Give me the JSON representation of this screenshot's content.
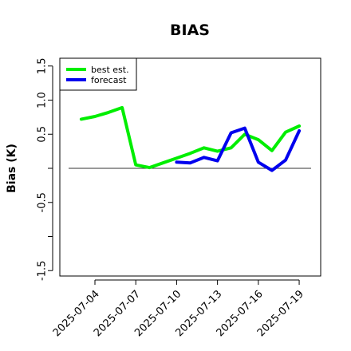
{
  "chart_data": {
    "type": "line",
    "title": "BIAS",
    "ylabel": "Bias (K)",
    "xlabel": "",
    "ylim": [
      -1.6,
      1.65
    ],
    "y_ticks": [
      -1.5,
      -1.0,
      -0.5,
      0.0,
      0.5,
      1.0,
      1.5
    ],
    "y_tick_labels": [
      "-1.5",
      "",
      "-0.5",
      "",
      "0.5",
      "1.0",
      "1.5"
    ],
    "x_ticks": [
      "2025-07-04",
      "2025-07-07",
      "2025-07-10",
      "2025-07-13",
      "2025-07-16",
      "2025-07-19"
    ],
    "highlight_tick": "2025-07-10",
    "highlight_color": "#2e8b2e",
    "reference_line": 0,
    "legend": {
      "position": "top-left",
      "entries": [
        "best est.",
        "forecast"
      ]
    },
    "series": [
      {
        "name": "best est.",
        "color": "#00ee00",
        "points": [
          {
            "x": "2025-07-03",
            "y": 0.72
          },
          {
            "x": "2025-07-04",
            "y": 0.76
          },
          {
            "x": "2025-07-05",
            "y": 0.82
          },
          {
            "x": "2025-07-06",
            "y": 0.89
          },
          {
            "x": "2025-07-07",
            "y": 0.05
          },
          {
            "x": "2025-07-08",
            "y": 0.01
          },
          {
            "x": "2025-07-09",
            "y": 0.08
          },
          {
            "x": "2025-07-10",
            "y": 0.15
          },
          {
            "x": "2025-07-11",
            "y": 0.22
          },
          {
            "x": "2025-07-12",
            "y": 0.3
          },
          {
            "x": "2025-07-13",
            "y": 0.25
          },
          {
            "x": "2025-07-14",
            "y": 0.3
          },
          {
            "x": "2025-07-15",
            "y": 0.5
          },
          {
            "x": "2025-07-16",
            "y": 0.42
          },
          {
            "x": "2025-07-17",
            "y": 0.26
          },
          {
            "x": "2025-07-18",
            "y": 0.53
          },
          {
            "x": "2025-07-19",
            "y": 0.62
          }
        ]
      },
      {
        "name": "forecast",
        "color": "#0000ee",
        "points": [
          {
            "x": "2025-07-10",
            "y": 0.09
          },
          {
            "x": "2025-07-11",
            "y": 0.08
          },
          {
            "x": "2025-07-12",
            "y": 0.16
          },
          {
            "x": "2025-07-13",
            "y": 0.11
          },
          {
            "x": "2025-07-14",
            "y": 0.52
          },
          {
            "x": "2025-07-15",
            "y": 0.59
          },
          {
            "x": "2025-07-16",
            "y": 0.09
          },
          {
            "x": "2025-07-17",
            "y": -0.03
          },
          {
            "x": "2025-07-18",
            "y": 0.12
          },
          {
            "x": "2025-07-19",
            "y": 0.55
          }
        ]
      }
    ]
  }
}
